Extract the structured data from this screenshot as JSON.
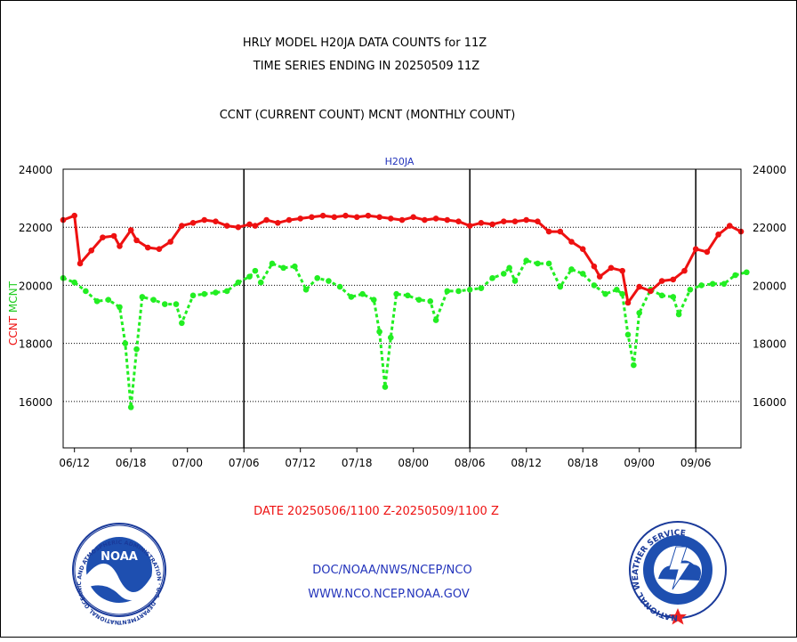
{
  "header": {
    "title_line1": "HRLY MODEL H20JA DATA COUNTS for 11Z",
    "title_line2": "TIME SERIES ENDING IN 20250509 11Z",
    "subtitle": "CCNT (CURRENT COUNT) MCNT (MONTHLY COUNT)"
  },
  "footer": {
    "date_range": "DATE 20250506/1100 Z-20250509/1100 Z",
    "org_path": "DOC/NOAA/NWS/NCEP/NCO",
    "website": "WWW.NCO.NCEP.NOAA.GOV",
    "noaa_logo_text": "NOAA",
    "noaa_seal_text": "NATIONAL OCEANIC AND ATMOSPHERIC ADMINISTRATION · U.S. DEPARTMENT OF COMMERCE",
    "nws_seal_text": "NATIONAL WEATHER SERVICE"
  },
  "colors": {
    "ccnt": "#ee1111",
    "mcnt": "#22ee22",
    "label_blue": "#2233bb",
    "date_red": "#ee1111"
  },
  "chart_data": {
    "type": "line",
    "title": "H20JA",
    "ylabel_left_parts": [
      "CCNT",
      "MCNT"
    ],
    "ylim": [
      14400,
      24000
    ],
    "yticks": [
      16000,
      18000,
      20000,
      22000,
      24000
    ],
    "ytick_labels": [
      "16000",
      "18000",
      "20000",
      "22000",
      "24000"
    ],
    "x_index_range": [
      0,
      120
    ],
    "x_ticks": [
      {
        "i": 2,
        "label": "06/12"
      },
      {
        "i": 12,
        "label": "06/18"
      },
      {
        "i": 22,
        "label": "07/00"
      },
      {
        "i": 32,
        "label": "07/06"
      },
      {
        "i": 42,
        "label": "07/12"
      },
      {
        "i": 52,
        "label": "07/18"
      },
      {
        "i": 62,
        "label": "08/00"
      },
      {
        "i": 72,
        "label": "08/06"
      },
      {
        "i": 82,
        "label": "08/12"
      },
      {
        "i": 92,
        "label": "08/18"
      },
      {
        "i": 102,
        "label": "09/00"
      },
      {
        "i": 112,
        "label": "09/06"
      }
    ],
    "vertical_lines_at": [
      32,
      72,
      112
    ],
    "grid": "horizontal dotted",
    "series": [
      {
        "name": "CCNT",
        "style": "solid",
        "points": [
          [
            0,
            22250
          ],
          [
            2,
            22400
          ],
          [
            3,
            20750
          ],
          [
            5,
            21200
          ],
          [
            7,
            21650
          ],
          [
            9,
            21700
          ],
          [
            10,
            21350
          ],
          [
            12,
            21900
          ],
          [
            13,
            21550
          ],
          [
            15,
            21300
          ],
          [
            17,
            21250
          ],
          [
            19,
            21500
          ],
          [
            21,
            22050
          ],
          [
            23,
            22150
          ],
          [
            25,
            22250
          ],
          [
            27,
            22200
          ],
          [
            29,
            22050
          ],
          [
            31,
            22000
          ],
          [
            33,
            22100
          ],
          [
            34,
            22050
          ],
          [
            36,
            22250
          ],
          [
            38,
            22150
          ],
          [
            40,
            22250
          ],
          [
            42,
            22300
          ],
          [
            44,
            22350
          ],
          [
            46,
            22400
          ],
          [
            48,
            22350
          ],
          [
            50,
            22400
          ],
          [
            52,
            22350
          ],
          [
            54,
            22400
          ],
          [
            56,
            22350
          ],
          [
            58,
            22300
          ],
          [
            60,
            22250
          ],
          [
            62,
            22350
          ],
          [
            64,
            22250
          ],
          [
            66,
            22300
          ],
          [
            68,
            22250
          ],
          [
            70,
            22200
          ],
          [
            72,
            22050
          ],
          [
            74,
            22150
          ],
          [
            76,
            22100
          ],
          [
            78,
            22200
          ],
          [
            80,
            22200
          ],
          [
            82,
            22250
          ],
          [
            84,
            22200
          ],
          [
            86,
            21850
          ],
          [
            88,
            21850
          ],
          [
            90,
            21500
          ],
          [
            92,
            21250
          ],
          [
            94,
            20650
          ],
          [
            95,
            20300
          ],
          [
            97,
            20600
          ],
          [
            99,
            20500
          ],
          [
            100,
            19400
          ],
          [
            102,
            19950
          ],
          [
            104,
            19800
          ],
          [
            106,
            20150
          ],
          [
            108,
            20200
          ],
          [
            110,
            20500
          ],
          [
            112,
            21250
          ],
          [
            114,
            21150
          ],
          [
            116,
            21750
          ],
          [
            118,
            22050
          ],
          [
            120,
            21850
          ]
        ]
      },
      {
        "name": "MCNT",
        "style": "dotted",
        "points": [
          [
            0,
            20250
          ],
          [
            2,
            20100
          ],
          [
            4,
            19800
          ],
          [
            6,
            19450
          ],
          [
            8,
            19500
          ],
          [
            10,
            19250
          ],
          [
            11,
            18000
          ],
          [
            12,
            15800
          ],
          [
            13,
            17800
          ],
          [
            14,
            19600
          ],
          [
            16,
            19500
          ],
          [
            18,
            19350
          ],
          [
            20,
            19350
          ],
          [
            21,
            18700
          ],
          [
            23,
            19650
          ],
          [
            25,
            19700
          ],
          [
            27,
            19750
          ],
          [
            29,
            19800
          ],
          [
            31,
            20100
          ],
          [
            33,
            20300
          ],
          [
            34,
            20500
          ],
          [
            35,
            20100
          ],
          [
            37,
            20750
          ],
          [
            39,
            20600
          ],
          [
            41,
            20650
          ],
          [
            43,
            19850
          ],
          [
            45,
            20250
          ],
          [
            47,
            20150
          ],
          [
            49,
            19950
          ],
          [
            51,
            19600
          ],
          [
            53,
            19700
          ],
          [
            55,
            19500
          ],
          [
            56,
            18400
          ],
          [
            57,
            16500
          ],
          [
            58,
            18200
          ],
          [
            59,
            19700
          ],
          [
            61,
            19650
          ],
          [
            63,
            19500
          ],
          [
            65,
            19450
          ],
          [
            66,
            18800
          ],
          [
            68,
            19800
          ],
          [
            70,
            19800
          ],
          [
            72,
            19850
          ],
          [
            74,
            19900
          ],
          [
            76,
            20250
          ],
          [
            78,
            20400
          ],
          [
            79,
            20600
          ],
          [
            80,
            20150
          ],
          [
            82,
            20850
          ],
          [
            84,
            20750
          ],
          [
            86,
            20750
          ],
          [
            88,
            19950
          ],
          [
            90,
            20550
          ],
          [
            92,
            20400
          ],
          [
            94,
            20000
          ],
          [
            96,
            19700
          ],
          [
            98,
            19850
          ],
          [
            99,
            19700
          ],
          [
            100,
            18300
          ],
          [
            101,
            17250
          ],
          [
            102,
            19050
          ],
          [
            104,
            19850
          ],
          [
            106,
            19650
          ],
          [
            108,
            19600
          ],
          [
            109,
            19000
          ],
          [
            111,
            19850
          ],
          [
            113,
            20000
          ],
          [
            115,
            20050
          ],
          [
            117,
            20050
          ],
          [
            119,
            20350
          ],
          [
            121,
            20450
          ]
        ]
      }
    ]
  }
}
